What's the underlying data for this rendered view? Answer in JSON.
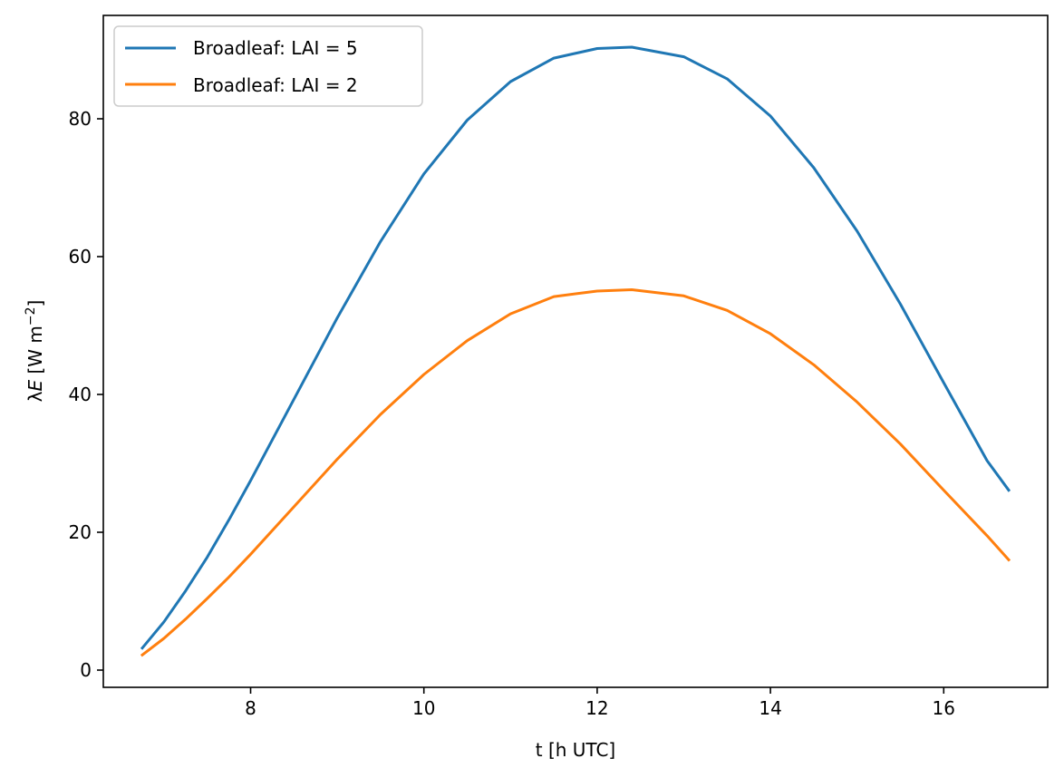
{
  "chart_data": {
    "type": "line",
    "title": "",
    "xlabel": "t [h UTC]",
    "ylabel_parts": {
      "symbol": "λ",
      "var": "E",
      "unit": " [W m",
      "sup": "−2",
      "close": "]"
    },
    "xlim": [
      6.3,
      17.2
    ],
    "ylim": [
      -2.5,
      95
    ],
    "xticks": [
      8,
      10,
      12,
      14,
      16
    ],
    "yticks": [
      0,
      20,
      40,
      60,
      80
    ],
    "grid": false,
    "legend_position": "top-left",
    "series": [
      {
        "name": "Broadleaf: LAI = 5",
        "color": "#1f77b4",
        "x": [
          6.75,
          7.0,
          7.25,
          7.5,
          7.75,
          8.0,
          8.5,
          9.0,
          9.5,
          10.0,
          10.5,
          11.0,
          11.5,
          12.0,
          12.4,
          13.0,
          13.5,
          14.0,
          14.5,
          15.0,
          15.5,
          16.0,
          16.5,
          16.75
        ],
        "y": [
          3.2,
          7.0,
          11.5,
          16.4,
          21.8,
          27.5,
          39.3,
          51.1,
          62.2,
          72.0,
          79.8,
          85.4,
          88.8,
          90.2,
          90.4,
          89.0,
          85.8,
          80.4,
          72.9,
          63.7,
          53.1,
          41.7,
          30.4,
          26.1
        ]
      },
      {
        "name": "Broadleaf: LAI = 2",
        "color": "#ff7f0e",
        "x": [
          6.75,
          7.0,
          7.25,
          7.5,
          7.75,
          8.0,
          8.5,
          9.0,
          9.5,
          10.0,
          10.5,
          11.0,
          11.5,
          12.0,
          12.4,
          13.0,
          13.5,
          14.0,
          14.5,
          15.0,
          15.5,
          16.0,
          16.5,
          16.75
        ],
        "y": [
          2.2,
          4.6,
          7.4,
          10.4,
          13.5,
          16.8,
          23.7,
          30.6,
          37.1,
          42.9,
          47.8,
          51.7,
          54.2,
          55.0,
          55.2,
          54.3,
          52.2,
          48.8,
          44.3,
          38.9,
          32.8,
          26.1,
          19.5,
          16.0
        ]
      }
    ]
  }
}
